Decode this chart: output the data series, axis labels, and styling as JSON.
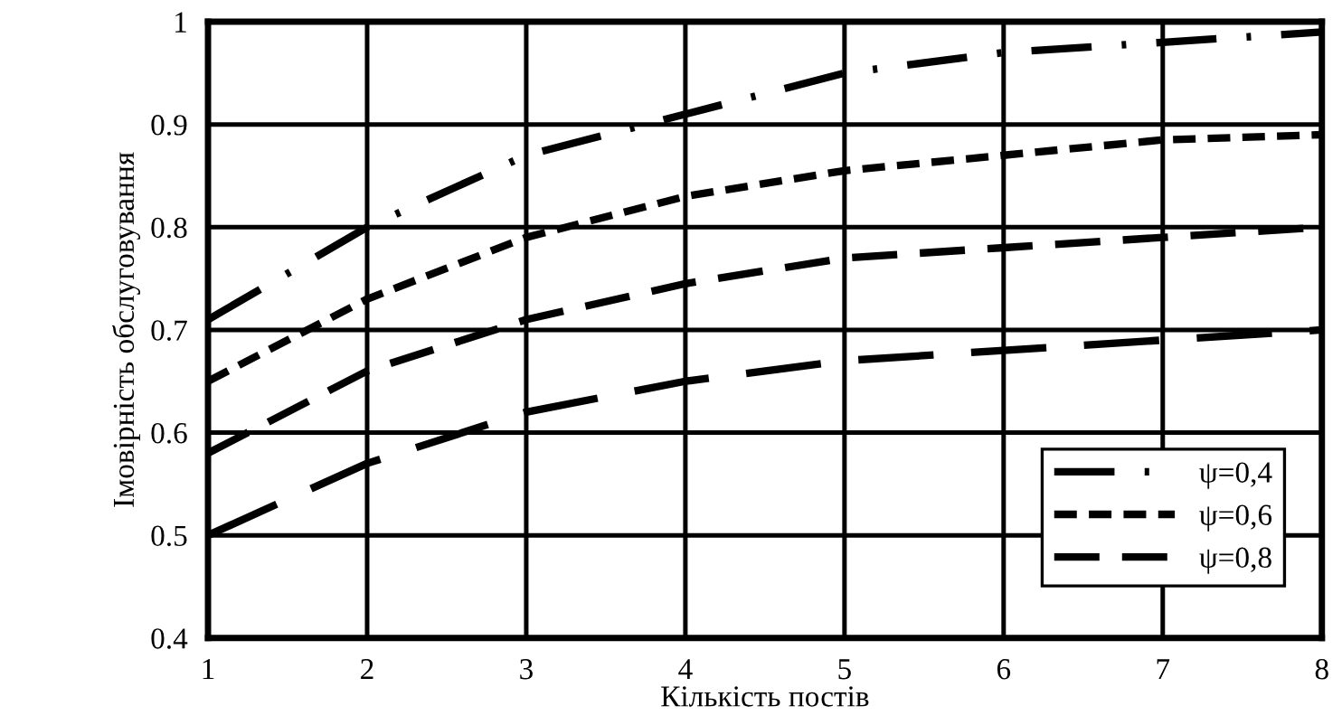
{
  "chart_data": {
    "type": "line",
    "xlabel": "Кількість постів",
    "ylabel": "Імовірність обслуговування",
    "x": [
      1,
      2,
      3,
      4,
      5,
      6,
      7,
      8
    ],
    "series": [
      {
        "name": "ψ=0,4",
        "color": "#000000",
        "line_style": "dashdot",
        "values": [
          0.71,
          0.8,
          0.87,
          0.91,
          0.95,
          0.97,
          0.98,
          0.99
        ]
      },
      {
        "name": "ψ=0,6",
        "color": "#000000",
        "line_style": "dotted",
        "values": [
          0.65,
          0.73,
          0.79,
          0.83,
          0.855,
          0.87,
          0.885,
          0.89
        ]
      },
      {
        "name": "ψ=0,8",
        "color": "#000000",
        "line_style": "dashed",
        "values": [
          0.58,
          0.66,
          0.71,
          0.745,
          0.77,
          0.78,
          0.79,
          0.8
        ]
      },
      {
        "color": "#000000",
        "line_style": "longdash",
        "values": [
          0.5,
          0.57,
          0.62,
          0.65,
          0.67,
          0.68,
          0.69,
          0.7
        ]
      }
    ],
    "xlim": [
      1,
      8
    ],
    "xticks": [
      1,
      2,
      3,
      4,
      5,
      6,
      7,
      8
    ],
    "ylim": [
      0.4,
      1
    ],
    "yticks": [
      0.4,
      0.5,
      0.6,
      0.7,
      0.8,
      0.9,
      1
    ],
    "grid": true,
    "legend": "bottom right",
    "marker": "none"
  }
}
